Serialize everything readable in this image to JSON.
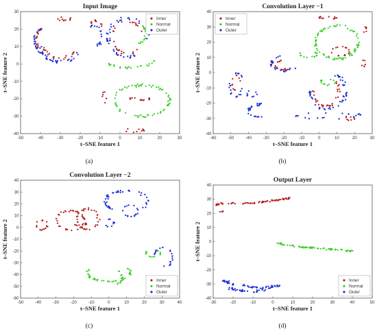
{
  "colors": {
    "inner": "#b22222",
    "normal": "#3ccf2a",
    "outer": "#1a2fd6",
    "frame": "#555555"
  },
  "legend_labels": [
    "Inner",
    "Normal",
    "Outer"
  ],
  "chart_data": [
    {
      "type": "scatter",
      "title": "Input Image",
      "caption": "(a)",
      "xlabel": "t–SNE feature 1",
      "ylabel": "t–SNE feature 2",
      "xlim": [
        -50,
        30
      ],
      "ylim": [
        -40,
        30
      ],
      "xticks": [
        "-50",
        "-40",
        "-30",
        "-20",
        "-10",
        "0",
        "10",
        "20",
        "30"
      ],
      "yticks": [
        "-40",
        "-30",
        "-20",
        "-10",
        "0",
        "10",
        "20",
        "30"
      ],
      "legend_position": "top-right",
      "clusters": [
        {
          "series": "outer",
          "cx": -39,
          "cy": 13,
          "rx": 4,
          "ry": 7,
          "a0": 90,
          "a1": 270,
          "n": 26,
          "noise": 0.7
        },
        {
          "series": "inner",
          "cx": -39,
          "cy": 14,
          "rx": 3,
          "ry": 6,
          "a0": 100,
          "a1": 250,
          "n": 14,
          "noise": 0.6
        },
        {
          "series": "outer",
          "cx": -30,
          "cy": 11,
          "rx": 10,
          "ry": 10,
          "a0": 190,
          "a1": 340,
          "n": 30,
          "noise": 1.0
        },
        {
          "series": "inner",
          "cx": -30,
          "cy": 12,
          "rx": 9,
          "ry": 9,
          "a0": 200,
          "a1": 330,
          "n": 20,
          "noise": 0.9
        },
        {
          "series": "inner",
          "cx": -28,
          "cy": 26,
          "rx": 3,
          "ry": 1,
          "a0": 0,
          "a1": 360,
          "n": 10,
          "noise": 0.6
        },
        {
          "series": "outer",
          "cx": -13,
          "cy": 16,
          "rx": 4,
          "ry": 6,
          "a0": -60,
          "a1": 120,
          "n": 18,
          "noise": 0.8
        },
        {
          "series": "inner",
          "cx": -12,
          "cy": 22,
          "rx": 3,
          "ry": 3,
          "a0": -40,
          "a1": 160,
          "n": 10,
          "noise": 0.6
        },
        {
          "series": "outer",
          "cx": 4,
          "cy": 15,
          "rx": 10,
          "ry": 11,
          "a0": 0,
          "a1": 300,
          "n": 45,
          "noise": 1.0
        },
        {
          "series": "inner",
          "cx": 4,
          "cy": 15,
          "rx": 8,
          "ry": 9,
          "a0": 20,
          "a1": 320,
          "n": 30,
          "noise": 0.9
        },
        {
          "series": "normal",
          "cx": 10,
          "cy": 17,
          "rx": 3,
          "ry": 5,
          "a0": -90,
          "a1": 90,
          "n": 14,
          "noise": 0.6
        },
        {
          "series": "normal",
          "cx": 5,
          "cy": 2,
          "rx": 12,
          "ry": 4,
          "a0": 180,
          "a1": 360,
          "n": 24,
          "noise": 0.7
        },
        {
          "series": "normal",
          "cx": 11,
          "cy": -21,
          "rx": 14,
          "ry": 9,
          "a0": 0,
          "a1": 360,
          "n": 70,
          "noise": 1.0
        },
        {
          "series": "inner",
          "cx": 10,
          "cy": -20,
          "rx": 5,
          "ry": 0.8,
          "a0": 0,
          "a1": 360,
          "n": 14,
          "noise": 0.4
        },
        {
          "series": "inner",
          "cx": 7,
          "cy": -38,
          "rx": 5,
          "ry": 1,
          "a0": 0,
          "a1": 360,
          "n": 10,
          "noise": 0.5
        },
        {
          "series": "inner",
          "cx": -8,
          "cy": -19,
          "rx": 1,
          "ry": 3,
          "a0": 0,
          "a1": 360,
          "n": 6,
          "noise": 0.5
        }
      ]
    },
    {
      "type": "scatter",
      "title": "Convolution Layer −1",
      "caption": "(b)",
      "xlabel": "t–SNE feature 1",
      "ylabel": "t–SNE feature 2",
      "xlim": [
        -60,
        30
      ],
      "ylim": [
        -40,
        40
      ],
      "xticks": [
        "-60",
        "-50",
        "-40",
        "-30",
        "-20",
        "-10",
        "0",
        "10",
        "20",
        "30"
      ],
      "yticks": [
        "-40",
        "-30",
        "-20",
        "-10",
        "0",
        "10",
        "20",
        "30",
        "40"
      ],
      "legend_position": "top-left",
      "clusters": [
        {
          "series": "inner",
          "cx": 5,
          "cy": 36,
          "rx": 5,
          "ry": 1,
          "a0": 0,
          "a1": 360,
          "n": 14,
          "noise": 0.5
        },
        {
          "series": "normal",
          "cx": 10,
          "cy": 20,
          "rx": 12,
          "ry": 11,
          "a0": 0,
          "a1": 360,
          "n": 80,
          "noise": 1.0
        },
        {
          "series": "inner",
          "cx": 12,
          "cy": 14,
          "rx": 5,
          "ry": 3,
          "a0": 0,
          "a1": 360,
          "n": 16,
          "noise": 0.6
        },
        {
          "series": "inner",
          "cx": 26,
          "cy": 28,
          "rx": 1,
          "ry": 2,
          "a0": 0,
          "a1": 360,
          "n": 6,
          "noise": 0.4
        },
        {
          "series": "inner",
          "cx": 25,
          "cy": 6,
          "rx": 1.5,
          "ry": 2,
          "a0": 0,
          "a1": 360,
          "n": 6,
          "noise": 0.4
        },
        {
          "series": "normal",
          "cx": -6,
          "cy": 12,
          "rx": 5,
          "ry": 2,
          "a0": 0,
          "a1": 360,
          "n": 16,
          "noise": 0.5
        },
        {
          "series": "outer",
          "cx": -20,
          "cy": 6,
          "rx": 7,
          "ry": 5,
          "a0": 90,
          "a1": 330,
          "n": 24,
          "noise": 0.9
        },
        {
          "series": "inner",
          "cx": -20,
          "cy": 5,
          "rx": 5,
          "ry": 3,
          "a0": 100,
          "a1": 320,
          "n": 14,
          "noise": 0.7
        },
        {
          "series": "outer",
          "cx": -47,
          "cy": -8,
          "rx": 4,
          "ry": 8,
          "a0": 0,
          "a1": 360,
          "n": 20,
          "noise": 1.0
        },
        {
          "series": "inner",
          "cx": -47,
          "cy": -7,
          "rx": 2,
          "ry": 5,
          "a0": 0,
          "a1": 360,
          "n": 10,
          "noise": 0.7
        },
        {
          "series": "outer",
          "cx": 5,
          "cy": -12,
          "rx": 10,
          "ry": 12,
          "a0": 180,
          "a1": 420,
          "n": 45,
          "noise": 1.1
        },
        {
          "series": "inner",
          "cx": 4,
          "cy": -12,
          "rx": 7,
          "ry": 10,
          "a0": 180,
          "a1": 400,
          "n": 28,
          "noise": 1.0
        },
        {
          "series": "normal",
          "cx": 5,
          "cy": -6,
          "rx": 4,
          "ry": 2,
          "a0": 0,
          "a1": 360,
          "n": 12,
          "noise": 0.5
        },
        {
          "series": "outer",
          "cx": -25,
          "cy": -25,
          "rx": 15,
          "ry": 5,
          "a0": 120,
          "a1": 240,
          "n": 26,
          "noise": 1.0
        },
        {
          "series": "outer",
          "cx": 5,
          "cy": -28,
          "rx": 18,
          "ry": 2,
          "a0": 0,
          "a1": 360,
          "n": 22,
          "noise": 1.0
        },
        {
          "series": "inner",
          "cx": 17,
          "cy": -30,
          "rx": 3,
          "ry": 1,
          "a0": 0,
          "a1": 360,
          "n": 8,
          "noise": 0.5
        },
        {
          "series": "outer",
          "cx": -38,
          "cy": -14,
          "rx": 3,
          "ry": 2,
          "a0": 0,
          "a1": 360,
          "n": 8,
          "noise": 0.6
        }
      ]
    },
    {
      "type": "scatter",
      "title": "Convolution Layer −2",
      "caption": "(c)",
      "xlabel": "t–SNE feature 1",
      "ylabel": "t–SNE feature 2",
      "xlim": [
        -50,
        40
      ],
      "ylim": [
        -60,
        40
      ],
      "xticks": [
        "-50",
        "-40",
        "-30",
        "-20",
        "-10",
        "0",
        "10",
        "20",
        "30",
        "40"
      ],
      "yticks": [
        "-60",
        "-50",
        "-40",
        "-30",
        "-20",
        "-10",
        "0",
        "10",
        "20",
        "30",
        "40"
      ],
      "legend_position": "bottom-right",
      "clusters": [
        {
          "series": "inner",
          "cx": -38,
          "cy": 2,
          "rx": 3,
          "ry": 4,
          "a0": 0,
          "a1": 360,
          "n": 16,
          "noise": 0.7
        },
        {
          "series": "inner",
          "cx": -22,
          "cy": 6,
          "rx": 8,
          "ry": 8,
          "a0": 0,
          "a1": 360,
          "n": 36,
          "noise": 1.0
        },
        {
          "series": "inner",
          "cx": -12,
          "cy": 7,
          "rx": 6,
          "ry": 9,
          "a0": 0,
          "a1": 360,
          "n": 30,
          "noise": 1.0
        },
        {
          "series": "inner",
          "cx": -16,
          "cy": 3,
          "rx": 3,
          "ry": 2,
          "a0": 0,
          "a1": 360,
          "n": 10,
          "noise": 0.6
        },
        {
          "series": "outer",
          "cx": 10,
          "cy": 22,
          "rx": 12,
          "ry": 9,
          "a0": -40,
          "a1": 230,
          "n": 46,
          "noise": 1.0
        },
        {
          "series": "outer",
          "cx": 12,
          "cy": 14,
          "rx": 4,
          "ry": 5,
          "a0": 0,
          "a1": 360,
          "n": 16,
          "noise": 0.8
        },
        {
          "series": "outer",
          "cx": 0,
          "cy": 4,
          "rx": 3,
          "ry": 3,
          "a0": 0,
          "a1": 360,
          "n": 8,
          "noise": 0.6
        },
        {
          "series": "outer",
          "cx": 31,
          "cy": -25,
          "rx": 5,
          "ry": 8,
          "a0": -90,
          "a1": 180,
          "n": 22,
          "noise": 0.8
        },
        {
          "series": "normal",
          "cx": 25,
          "cy": -22,
          "rx": 4,
          "ry": 3,
          "a0": 0,
          "a1": 360,
          "n": 12,
          "noise": 0.6
        },
        {
          "series": "normal",
          "cx": 0,
          "cy": -38,
          "rx": 12,
          "ry": 8,
          "a0": 150,
          "a1": 390,
          "n": 40,
          "noise": 1.0
        },
        {
          "series": "normal",
          "cx": 3,
          "cy": -42,
          "rx": 5,
          "ry": 6,
          "a0": -80,
          "a1": 80,
          "n": 16,
          "noise": 0.8
        }
      ]
    },
    {
      "type": "scatter",
      "title": "Output Layer",
      "caption": "(d)",
      "xlabel": "t–SNE feature 1",
      "ylabel": "t–SNE feature 2",
      "xlim": [
        -30,
        50
      ],
      "ylim": [
        -40,
        40
      ],
      "xticks": [
        "-30",
        "-20",
        "-10",
        "0",
        "10",
        "20",
        "30",
        "40",
        "50"
      ],
      "yticks": [
        "-40",
        "-30",
        "-20",
        "-10",
        "0",
        "10",
        "20",
        "30",
        "40"
      ],
      "legend_position": "bottom-right",
      "paths": [
        {
          "series": "inner",
          "pts": [
            [
              -29,
              26
            ],
            [
              -25,
              27
            ],
            [
              -15,
              27
            ],
            [
              -5,
              28
            ],
            [
              0,
              29
            ],
            [
              5,
              30
            ],
            [
              10,
              31
            ]
          ],
          "n": 70,
          "noise": 0.7
        },
        {
          "series": "inner",
          "pts": [
            [
              -27,
              22
            ],
            [
              -25,
              21
            ]
          ],
          "n": 4,
          "noise": 0.5
        },
        {
          "series": "normal",
          "pts": [
            [
              0,
              0
            ],
            [
              5,
              -2
            ],
            [
              15,
              -4
            ],
            [
              25,
              -5
            ],
            [
              35,
              -6
            ],
            [
              40,
              -7
            ]
          ],
          "n": 70,
          "noise": 0.7
        },
        {
          "series": "outer",
          "pts": [
            [
              -25,
              -28
            ],
            [
              -20,
              -30
            ],
            [
              -12,
              -32
            ],
            [
              -5,
              -33
            ],
            [
              0,
              -32
            ],
            [
              3,
              -31
            ]
          ],
          "n": 60,
          "noise": 1.0
        },
        {
          "series": "outer",
          "pts": [
            [
              -22,
              -33
            ],
            [
              -15,
              -35
            ],
            [
              -8,
              -35
            ],
            [
              -2,
              -34
            ]
          ],
          "n": 30,
          "noise": 0.9
        }
      ]
    }
  ]
}
